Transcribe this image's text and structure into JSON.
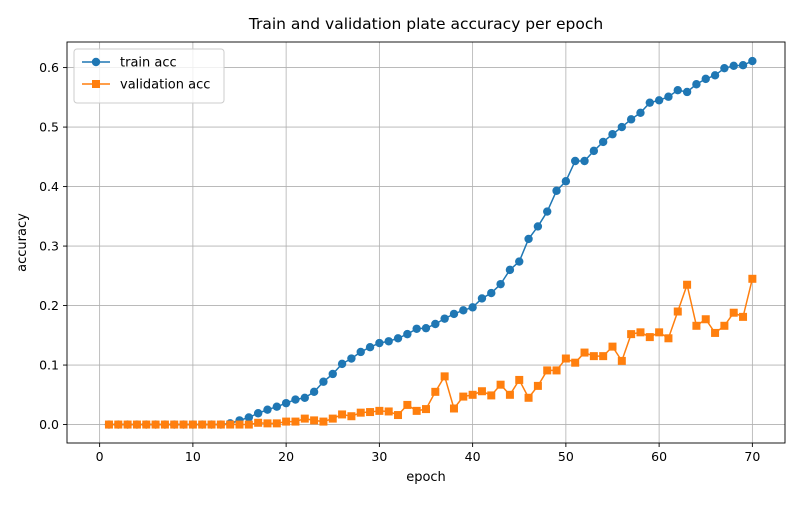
{
  "chart_data": {
    "type": "line",
    "title": "Train and validation plate accuracy per epoch",
    "xlabel": "epoch",
    "ylabel": "accuracy",
    "xlim": [
      -3.5,
      73.5
    ],
    "ylim": [
      -0.031,
      0.643
    ],
    "xticks": [
      0,
      10,
      20,
      30,
      40,
      50,
      60,
      70
    ],
    "yticks": [
      0.0,
      0.1,
      0.2,
      0.3,
      0.4,
      0.5,
      0.6
    ],
    "xtick_labels": [
      "0",
      "10",
      "20",
      "30",
      "40",
      "50",
      "60",
      "70"
    ],
    "ytick_labels": [
      "0.0",
      "0.1",
      "0.2",
      "0.3",
      "0.4",
      "0.5",
      "0.6"
    ],
    "grid": true,
    "legend_position": "top-left",
    "x": [
      1,
      2,
      3,
      4,
      5,
      6,
      7,
      8,
      9,
      10,
      11,
      12,
      13,
      14,
      15,
      16,
      17,
      18,
      19,
      20,
      21,
      22,
      23,
      24,
      25,
      26,
      27,
      28,
      29,
      30,
      31,
      32,
      33,
      34,
      35,
      36,
      37,
      38,
      39,
      40,
      41,
      42,
      43,
      44,
      45,
      46,
      47,
      48,
      49,
      50,
      51,
      52,
      53,
      54,
      55,
      56,
      57,
      58,
      59,
      60,
      61,
      62,
      63,
      64,
      65,
      66,
      67,
      68,
      69,
      70
    ],
    "series": [
      {
        "name": "train acc",
        "color": "#1f77b4",
        "marker": "circle",
        "values": [
          0,
          0,
          0,
          0,
          0,
          0,
          0,
          0,
          0,
          0,
          0,
          0,
          0,
          0.002,
          0.007,
          0.012,
          0.019,
          0.025,
          0.03,
          0.036,
          0.042,
          0.045,
          0.055,
          0.072,
          0.085,
          0.102,
          0.111,
          0.122,
          0.13,
          0.137,
          0.14,
          0.145,
          0.152,
          0.161,
          0.162,
          0.169,
          0.178,
          0.186,
          0.192,
          0.197,
          0.212,
          0.221,
          0.236,
          0.26,
          0.274,
          0.312,
          0.333,
          0.358,
          0.393,
          0.409,
          0.443,
          0.443,
          0.46,
          0.475,
          0.488,
          0.5,
          0.513,
          0.524,
          0.541,
          0.545,
          0.551,
          0.562,
          0.559,
          0.572,
          0.581,
          0.587,
          0.599,
          0.603,
          0.604,
          0.611
        ]
      },
      {
        "name": "validation acc",
        "color": "#ff7f0e",
        "marker": "square",
        "values": [
          0,
          0,
          0,
          0,
          0,
          0,
          0,
          0,
          0,
          0,
          0,
          0,
          0,
          0,
          0,
          0,
          0.003,
          0.002,
          0.002,
          0.005,
          0.005,
          0.01,
          0.007,
          0.005,
          0.01,
          0.017,
          0.014,
          0.02,
          0.021,
          0.023,
          0.022,
          0.016,
          0.033,
          0.023,
          0.026,
          0.055,
          0.081,
          0.027,
          0.047,
          0.05,
          0.056,
          0.049,
          0.067,
          0.05,
          0.075,
          0.045,
          0.065,
          0.091,
          0.091,
          0.111,
          0.104,
          0.121,
          0.115,
          0.115,
          0.131,
          0.107,
          0.152,
          0.155,
          0.147,
          0.155,
          0.145,
          0.19,
          0.235,
          0.166,
          0.177,
          0.154,
          0.166,
          0.188,
          0.181,
          0.245
        ]
      }
    ]
  }
}
